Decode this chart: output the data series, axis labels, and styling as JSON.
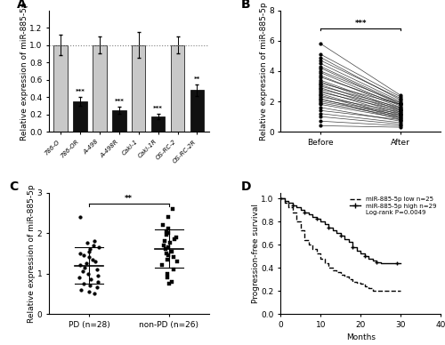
{
  "panel_A": {
    "categories": [
      "786-O",
      "786-OR",
      "A-498",
      "A-498R",
      "Caki-1",
      "Caki-1R",
      "OS-RC-2",
      "OS-RC-2R"
    ],
    "values": [
      1.0,
      0.35,
      1.0,
      0.25,
      1.0,
      0.18,
      1.0,
      0.48
    ],
    "errors": [
      0.12,
      0.05,
      0.1,
      0.04,
      0.15,
      0.03,
      0.1,
      0.07
    ],
    "colors": [
      "#c8c8c8",
      "#111111",
      "#c8c8c8",
      "#111111",
      "#c8c8c8",
      "#111111",
      "#c8c8c8",
      "#111111"
    ],
    "ylabel": "Relative expression of miR-885-5p",
    "ylim": [
      0,
      1.4
    ],
    "yticks": [
      0.0,
      0.2,
      0.4,
      0.6,
      0.8,
      1.0,
      1.2
    ],
    "sig_indices": [
      1,
      3,
      5,
      7
    ],
    "sig_labels": [
      "***",
      "***",
      "***",
      "**"
    ],
    "dotted_line_y": 1.0
  },
  "panel_B": {
    "ylabel": "Relative expression of miR-885-5p",
    "xlabels": [
      "Before",
      "After"
    ],
    "ylim": [
      0,
      8
    ],
    "yticks": [
      0,
      2,
      4,
      6,
      8
    ],
    "significance": "***",
    "before_values": [
      5.8,
      5.1,
      4.9,
      4.7,
      4.5,
      4.3,
      4.2,
      4.0,
      3.9,
      3.7,
      3.6,
      3.4,
      3.3,
      3.2,
      3.1,
      3.0,
      2.9,
      2.8,
      2.7,
      2.6,
      2.5,
      2.4,
      2.3,
      2.2,
      2.1,
      2.0,
      1.9,
      1.8,
      1.6,
      1.4,
      1.2,
      1.0,
      0.7,
      0.4
    ],
    "after_values": [
      2.4,
      2.3,
      2.1,
      2.2,
      2.0,
      1.9,
      1.8,
      1.9,
      1.7,
      1.6,
      1.8,
      1.5,
      1.4,
      1.8,
      1.3,
      1.6,
      1.2,
      1.5,
      1.1,
      1.4,
      1.0,
      0.9,
      1.3,
      0.8,
      1.2,
      1.1,
      1.0,
      0.9,
      0.7,
      0.8,
      0.6,
      0.5,
      0.4,
      0.3
    ]
  },
  "panel_C": {
    "ylabel": "Relative expression of miR-885-5p",
    "xlabels": [
      "PD (n=28)",
      "non-PD (n=26)"
    ],
    "ylim": [
      0,
      3
    ],
    "yticks": [
      0,
      1,
      2,
      3
    ],
    "significance": "**",
    "pd_values": [
      2.4,
      1.8,
      1.75,
      1.7,
      1.65,
      1.6,
      1.55,
      1.5,
      1.45,
      1.4,
      1.35,
      1.3,
      1.25,
      1.2,
      1.15,
      1.1,
      1.05,
      1.0,
      0.95,
      0.9,
      0.85,
      0.8,
      0.75,
      0.7,
      0.65,
      0.6,
      0.55,
      0.5
    ],
    "nonpd_values": [
      2.6,
      2.4,
      2.2,
      2.1,
      2.05,
      2.0,
      1.95,
      1.9,
      1.85,
      1.8,
      1.75,
      1.7,
      1.65,
      1.6,
      1.55,
      1.5,
      1.45,
      1.4,
      1.35,
      1.3,
      1.2,
      1.1,
      1.0,
      0.9,
      0.8,
      0.75
    ]
  },
  "panel_D": {
    "xlabel": "Months",
    "ylabel": "Progression-free survival",
    "ylim": [
      0.0,
      1.05
    ],
    "xlim": [
      0,
      40
    ],
    "xticks": [
      0,
      10,
      20,
      30,
      40
    ],
    "yticks": [
      0.0,
      0.2,
      0.4,
      0.6,
      0.8,
      1.0
    ],
    "legend_low": "miR-885-5p low n=25",
    "legend_high": "miR-885-5p high n=29",
    "legend_pval": "Log-rank P=0.0049",
    "low_times": [
      0,
      1,
      2,
      3,
      4,
      5,
      6,
      7,
      8,
      9,
      10,
      11,
      12,
      13,
      14,
      15,
      16,
      17,
      18,
      19,
      20,
      21,
      22,
      23,
      24,
      25,
      30
    ],
    "low_surv": [
      1.0,
      0.96,
      0.92,
      0.88,
      0.8,
      0.72,
      0.64,
      0.6,
      0.56,
      0.52,
      0.48,
      0.44,
      0.4,
      0.38,
      0.36,
      0.34,
      0.32,
      0.3,
      0.28,
      0.27,
      0.26,
      0.24,
      0.22,
      0.2,
      0.2,
      0.2,
      0.2
    ],
    "high_times": [
      0,
      1,
      2,
      3,
      4,
      5,
      6,
      7,
      8,
      9,
      10,
      11,
      12,
      13,
      14,
      15,
      16,
      17,
      18,
      19,
      20,
      21,
      22,
      23,
      24,
      25,
      27,
      29,
      30
    ],
    "high_surv": [
      1.0,
      0.98,
      0.96,
      0.94,
      0.92,
      0.9,
      0.88,
      0.86,
      0.84,
      0.82,
      0.8,
      0.78,
      0.75,
      0.72,
      0.7,
      0.68,
      0.65,
      0.62,
      0.58,
      0.55,
      0.52,
      0.5,
      0.48,
      0.46,
      0.45,
      0.44,
      0.44,
      0.44,
      0.44
    ]
  },
  "bg_color": "#ffffff",
  "tick_fontsize": 6.5,
  "axis_label_fontsize": 6.5,
  "panel_label_fontsize": 10
}
